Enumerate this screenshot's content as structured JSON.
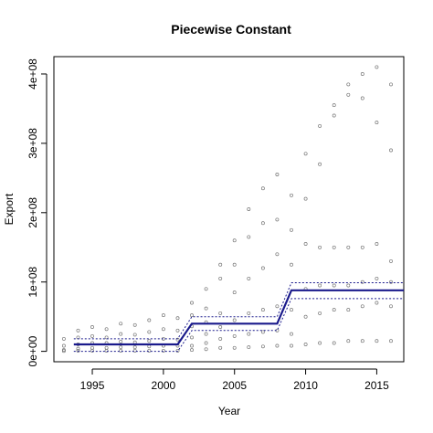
{
  "chart_data": {
    "type": "scatter",
    "title": "Piecewise Constant",
    "xlabel": "Year",
    "ylabel": "Export",
    "xlim": [
      1992.3,
      2016.9
    ],
    "ylim": [
      -15000000,
      425000000
    ],
    "x_ticks": [
      1995,
      2000,
      2005,
      2010,
      2015
    ],
    "x_tick_labels": [
      "1995",
      "2000",
      "2005",
      "2010",
      "2015"
    ],
    "y_ticks": [
      0,
      100000000,
      200000000,
      300000000,
      400000000
    ],
    "y_tick_labels": [
      "0e+00",
      "1e+08",
      "2e+08",
      "3e+08",
      "4e+08"
    ],
    "grid": false,
    "legend": "none",
    "colors": {
      "points": "#777777",
      "fit": "#1a1a8c"
    },
    "points": [
      [
        1993,
        18000000
      ],
      [
        1993,
        8000000
      ],
      [
        1993,
        2000000
      ],
      [
        1993,
        500000
      ],
      [
        1994,
        30000000
      ],
      [
        1994,
        20000000
      ],
      [
        1994,
        10000000
      ],
      [
        1994,
        4000000
      ],
      [
        1994,
        1000000
      ],
      [
        1995,
        35000000
      ],
      [
        1995,
        22000000
      ],
      [
        1995,
        12000000
      ],
      [
        1995,
        5000000
      ],
      [
        1995,
        1000000
      ],
      [
        1996,
        32000000
      ],
      [
        1996,
        20000000
      ],
      [
        1996,
        12000000
      ],
      [
        1996,
        5000000
      ],
      [
        1996,
        1000000
      ],
      [
        1997,
        40000000
      ],
      [
        1997,
        25000000
      ],
      [
        1997,
        14000000
      ],
      [
        1997,
        6000000
      ],
      [
        1997,
        1000000
      ],
      [
        1998,
        38000000
      ],
      [
        1998,
        24000000
      ],
      [
        1998,
        13000000
      ],
      [
        1998,
        6000000
      ],
      [
        1998,
        1000000
      ],
      [
        1999,
        45000000
      ],
      [
        1999,
        28000000
      ],
      [
        1999,
        15000000
      ],
      [
        1999,
        7000000
      ],
      [
        1999,
        1000000
      ],
      [
        2000,
        52000000
      ],
      [
        2000,
        32000000
      ],
      [
        2000,
        18000000
      ],
      [
        2000,
        8000000
      ],
      [
        2000,
        1000000
      ],
      [
        2001,
        48000000
      ],
      [
        2001,
        30000000
      ],
      [
        2001,
        17000000
      ],
      [
        2001,
        8000000
      ],
      [
        2001,
        1000000
      ],
      [
        2002,
        70000000
      ],
      [
        2002,
        52000000
      ],
      [
        2002,
        36000000
      ],
      [
        2002,
        20000000
      ],
      [
        2002,
        8000000
      ],
      [
        2002,
        2000000
      ],
      [
        2003,
        90000000
      ],
      [
        2003,
        62000000
      ],
      [
        2003,
        42000000
      ],
      [
        2003,
        25000000
      ],
      [
        2003,
        12000000
      ],
      [
        2003,
        3000000
      ],
      [
        2004,
        125000000
      ],
      [
        2004,
        105000000
      ],
      [
        2004,
        55000000
      ],
      [
        2004,
        35000000
      ],
      [
        2004,
        18000000
      ],
      [
        2004,
        5000000
      ],
      [
        2005,
        160000000
      ],
      [
        2005,
        125000000
      ],
      [
        2005,
        85000000
      ],
      [
        2005,
        45000000
      ],
      [
        2005,
        22000000
      ],
      [
        2005,
        5000000
      ],
      [
        2006,
        205000000
      ],
      [
        2006,
        165000000
      ],
      [
        2006,
        105000000
      ],
      [
        2006,
        55000000
      ],
      [
        2006,
        25000000
      ],
      [
        2006,
        6000000
      ],
      [
        2007,
        235000000
      ],
      [
        2007,
        185000000
      ],
      [
        2007,
        120000000
      ],
      [
        2007,
        60000000
      ],
      [
        2007,
        28000000
      ],
      [
        2007,
        7000000
      ],
      [
        2008,
        255000000
      ],
      [
        2008,
        190000000
      ],
      [
        2008,
        140000000
      ],
      [
        2008,
        65000000
      ],
      [
        2008,
        30000000
      ],
      [
        2008,
        8000000
      ],
      [
        2009,
        225000000
      ],
      [
        2009,
        175000000
      ],
      [
        2009,
        125000000
      ],
      [
        2009,
        60000000
      ],
      [
        2009,
        25000000
      ],
      [
        2009,
        8000000
      ],
      [
        2010,
        285000000
      ],
      [
        2010,
        220000000
      ],
      [
        2010,
        155000000
      ],
      [
        2010,
        90000000
      ],
      [
        2010,
        50000000
      ],
      [
        2010,
        10000000
      ],
      [
        2011,
        325000000
      ],
      [
        2011,
        270000000
      ],
      [
        2011,
        150000000
      ],
      [
        2011,
        95000000
      ],
      [
        2011,
        55000000
      ],
      [
        2011,
        12000000
      ],
      [
        2012,
        355000000
      ],
      [
        2012,
        340000000
      ],
      [
        2012,
        150000000
      ],
      [
        2012,
        95000000
      ],
      [
        2012,
        60000000
      ],
      [
        2012,
        12000000
      ],
      [
        2013,
        385000000
      ],
      [
        2013,
        370000000
      ],
      [
        2013,
        150000000
      ],
      [
        2013,
        95000000
      ],
      [
        2013,
        60000000
      ],
      [
        2013,
        15000000
      ],
      [
        2014,
        400000000
      ],
      [
        2014,
        365000000
      ],
      [
        2014,
        150000000
      ],
      [
        2014,
        100000000
      ],
      [
        2014,
        65000000
      ],
      [
        2014,
        15000000
      ],
      [
        2015,
        410000000
      ],
      [
        2015,
        330000000
      ],
      [
        2015,
        155000000
      ],
      [
        2015,
        105000000
      ],
      [
        2015,
        70000000
      ],
      [
        2015,
        15000000
      ],
      [
        2016,
        385000000
      ],
      [
        2016,
        290000000
      ],
      [
        2016,
        130000000
      ],
      [
        2016,
        100000000
      ],
      [
        2016,
        65000000
      ],
      [
        2016,
        15000000
      ]
    ],
    "fit": [
      [
        1993.7,
        10000000
      ],
      [
        2001.0,
        10000000
      ],
      [
        2002.0,
        40000000
      ],
      [
        2008.0,
        40000000
      ],
      [
        2009.0,
        88000000
      ],
      [
        2016.9,
        88000000
      ]
    ],
    "upper_band": [
      [
        1993.7,
        18000000
      ],
      [
        2001.0,
        18000000
      ],
      [
        2002.0,
        50000000
      ],
      [
        2008.0,
        50000000
      ],
      [
        2009.0,
        99000000
      ],
      [
        2016.9,
        99000000
      ]
    ],
    "lower_band": [
      [
        1993.7,
        0
      ],
      [
        2001.0,
        0
      ],
      [
        2002.0,
        30000000
      ],
      [
        2008.0,
        30000000
      ],
      [
        2009.0,
        76000000
      ],
      [
        2016.9,
        76000000
      ]
    ]
  }
}
